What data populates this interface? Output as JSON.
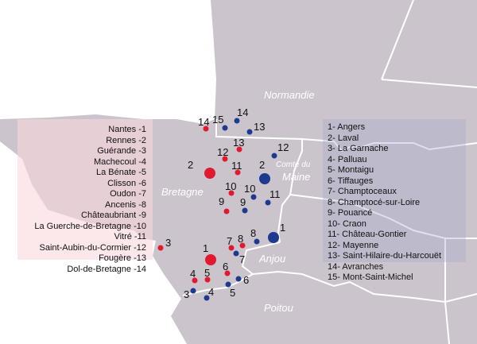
{
  "colors": {
    "land": "#cbc4cd",
    "border": "#ffffff",
    "red_marker": "#e0192f",
    "blue_marker": "#1d3a8f"
  },
  "regions": {
    "normandie": "Normandie",
    "bretagne": "Bretagne",
    "maine": "Comté du Maine",
    "maine_line1": "Comté du",
    "maine_line2": "Maine",
    "anjou": "Anjou",
    "poitou": "Poitou"
  },
  "legend_red": [
    "Nantes -1",
    "Rennes -2",
    "Guérande -3",
    "Machecoul -4",
    "La Bénate -5",
    "Clisson -6",
    "Oudon -7",
    "Ancenis -8",
    "Châteaubriant -9",
    "La Guerche-de-Bretagne -10",
    "Vitré -11",
    "Saint-Aubin-du-Cormier -12",
    "Fougère -13",
    "Dol-de-Bretagne -14"
  ],
  "legend_blue": [
    "1- Angers",
    "2- Laval",
    "3- La Garnache",
    "4- Palluau",
    "5- Montaigu",
    "6- Tiffauges",
    "7- Champtoceaux",
    "8- Champtocé-sur-Loire",
    "9- Pouancé",
    "10- Craon",
    "11- Château-Gontier",
    "12- Mayenne",
    "13- Saint-Hilaire-du-Harcouët",
    "14- Avranches",
    "15- Mont-Saint-Michel"
  ],
  "markers_red": [
    "1",
    "2",
    "3",
    "4",
    "5",
    "6",
    "7",
    "8",
    "9",
    "10",
    "11",
    "12",
    "13",
    "14"
  ],
  "markers_blue": [
    "1",
    "2",
    "3",
    "4",
    "5",
    "6",
    "7",
    "8",
    "9",
    "10",
    "11",
    "12",
    "13",
    "14",
    "15"
  ]
}
